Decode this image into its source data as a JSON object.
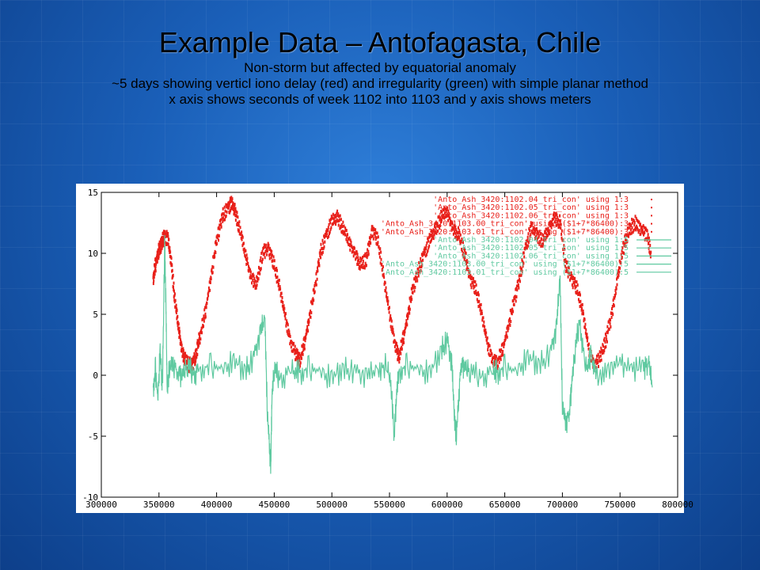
{
  "slide": {
    "title": "Example Data – Antofagasta, Chile",
    "subtitle_lines": [
      "Non-storm but affected by equatorial anomaly",
      "~5 days showing verticl iono delay (red) and irregularity (green) with simple planar method",
      "x axis shows seconds of week 1102 into 1103 and y axis shows meters"
    ]
  },
  "colors": {
    "iono_delay": "#e8201a",
    "irregularity": "#5fc9a0",
    "axis": "#000000"
  },
  "chart_data": {
    "type": "line",
    "title": "",
    "xlabel": "",
    "ylabel": "",
    "xlim": [
      300000,
      800000
    ],
    "ylim": [
      -10,
      15
    ],
    "x_ticks": [
      300000,
      350000,
      400000,
      450000,
      500000,
      550000,
      600000,
      650000,
      700000,
      750000,
      800000
    ],
    "y_ticks": [
      15,
      10,
      5,
      0,
      -5,
      -10
    ],
    "grid": false,
    "legend_position": "top-right",
    "series": [
      {
        "name": "'Anto_Ash_3420:1102.04_tri_con' using 1:3",
        "color_key": "iono_delay",
        "style": "dots",
        "x": [
          345000,
          347000,
          349000,
          351000,
          353000,
          355000,
          358000,
          361000,
          364000,
          367000,
          370000,
          373000,
          376000,
          379000,
          382000,
          385000
        ],
        "y": [
          8,
          9,
          10,
          10.5,
          11,
          11.5,
          11,
          9,
          6,
          4,
          2,
          1.2,
          0.8,
          1,
          1.5,
          3
        ]
      },
      {
        "name": "'Anto_Ash_3420:1102.05_tri_con' using 1:3",
        "color_key": "iono_delay",
        "style": "dots",
        "x": [
          385000,
          390000,
          395000,
          400000,
          405000,
          410000,
          413000,
          416000,
          420000,
          425000,
          430000,
          435000,
          440000,
          445000,
          450000,
          455000,
          460000,
          465000,
          470000,
          472000
        ],
        "y": [
          3,
          5,
          8,
          11,
          13,
          13.8,
          14,
          13.5,
          12,
          10,
          8,
          7.5,
          10,
          10.5,
          9,
          7,
          4.5,
          2.5,
          1.5,
          1.2
        ]
      },
      {
        "name": "'Anto_Ash_3420:1102.06_tri_con' using 1:3",
        "color_key": "iono_delay",
        "style": "dots",
        "x": [
          472000,
          476000,
          480000,
          485000,
          490000,
          495000,
          500000,
          505000,
          510000,
          515000,
          520000,
          525000,
          530000,
          535000,
          540000,
          545000,
          550000,
          555000,
          558000
        ],
        "y": [
          1.2,
          2.5,
          4.5,
          7,
          10,
          11.5,
          12.5,
          13,
          12,
          11,
          10,
          9,
          9.5,
          12,
          11,
          8,
          5,
          2.5,
          1.5
        ]
      },
      {
        "name": "'Anto_Ash_3420:1103.00_tri_con' using ($1+7*86400):3",
        "color_key": "iono_delay",
        "style": "dots",
        "x": [
          558000,
          562000,
          566000,
          570000,
          575000,
          580000,
          585000,
          590000,
          595000,
          600000,
          605000,
          610000,
          615000,
          620000,
          625000,
          630000,
          635000,
          640000,
          643000
        ],
        "y": [
          1.5,
          3,
          5,
          7,
          8.5,
          10,
          11,
          12,
          13,
          13.5,
          12,
          11.5,
          10,
          8,
          7,
          5,
          2.5,
          1.2,
          1
        ]
      },
      {
        "name": "'Anto_Ash_3420:1103.01_tri_con' using ($1+7*86400):3",
        "color_key": "iono_delay",
        "style": "dots",
        "x": [
          643000,
          648000,
          653000,
          658000,
          663000,
          668000,
          673000,
          678000,
          683000,
          688000,
          693000,
          698000,
          703000,
          708000,
          713000,
          718000,
          723000,
          728000,
          733000,
          738000,
          743000,
          748000,
          753000,
          758000,
          763000,
          768000,
          773000,
          777000
        ],
        "y": [
          1,
          2,
          4,
          6,
          8,
          10.5,
          12,
          11.5,
          11,
          12,
          13,
          12.5,
          9,
          8,
          7,
          5,
          2,
          0.8,
          1.5,
          3,
          5,
          8,
          10.5,
          12,
          12.5,
          12,
          11.5,
          10
        ]
      },
      {
        "name": "'Anto_Ash_3420:1102.04_tri_con' using 1:5",
        "color_key": "irregularity",
        "style": "line",
        "x": [
          345000,
          347000,
          349000,
          351000,
          353000,
          355000,
          356000,
          357000,
          359000,
          362000,
          366000,
          370000,
          375000,
          380000,
          385000
        ],
        "y": [
          -1,
          0.5,
          -2,
          2,
          -1,
          11,
          6,
          -1,
          0.5,
          1,
          0.3,
          -0.2,
          0.8,
          0.1,
          0.5
        ]
      },
      {
        "name": "'Anto_Ash_3420:1102.05_tri_con' using 1:5",
        "color_key": "irregularity",
        "style": "line",
        "x": [
          385000,
          395000,
          405000,
          415000,
          425000,
          432000,
          438000,
          442000,
          444000,
          446000,
          447000,
          448000,
          450000,
          455000,
          465000,
          472000
        ],
        "y": [
          0.5,
          0.8,
          0.5,
          1.2,
          0.3,
          1.5,
          3.5,
          4.5,
          -3,
          -6,
          -7.5,
          -2,
          0.5,
          -0.3,
          0.4,
          0.2
        ]
      },
      {
        "name": "'Anto_Ash_3420:1102.06_tri_con' using 1:5",
        "color_key": "irregularity",
        "style": "line",
        "x": [
          472000,
          480000,
          490000,
          500000,
          510000,
          520000,
          530000,
          540000,
          548000,
          552000,
          554000,
          556000,
          558000
        ],
        "y": [
          0.2,
          0.6,
          0.3,
          -0.2,
          0.5,
          0.4,
          -0.1,
          0.3,
          1,
          -1.5,
          -5,
          -2,
          0.3
        ]
      },
      {
        "name": "'Anto_Ash_3420:1103.00_tri_con' using ($1+7*86400):5",
        "color_key": "irregularity",
        "style": "line",
        "x": [
          558000,
          565000,
          575000,
          585000,
          595000,
          600000,
          604000,
          606000,
          608000,
          610000,
          612000,
          615000,
          620000,
          630000,
          640000,
          643000
        ],
        "y": [
          0.3,
          0.8,
          0.5,
          0.2,
          2,
          3,
          1,
          -3,
          -5,
          -2,
          1,
          0.5,
          0.3,
          -0.1,
          0.3,
          0.2
        ]
      },
      {
        "name": "'Anto_Ash_3420:1103.01_tri_con' using ($1+7*86400):5",
        "color_key": "irregularity",
        "style": "line",
        "x": [
          643000,
          650000,
          660000,
          670000,
          680000,
          690000,
          695000,
          698000,
          700000,
          703000,
          706000,
          708000,
          711000,
          715000,
          720000,
          725000,
          730000,
          740000,
          750000,
          760000,
          770000,
          775000,
          778000
        ],
        "y": [
          0.2,
          0.7,
          0.3,
          1.5,
          0.8,
          2,
          4,
          8,
          -2.5,
          -4,
          -3,
          -1,
          2,
          4.5,
          0.5,
          1.5,
          -0.3,
          0.5,
          0.8,
          0.6,
          0.4,
          1,
          -1
        ]
      }
    ]
  }
}
